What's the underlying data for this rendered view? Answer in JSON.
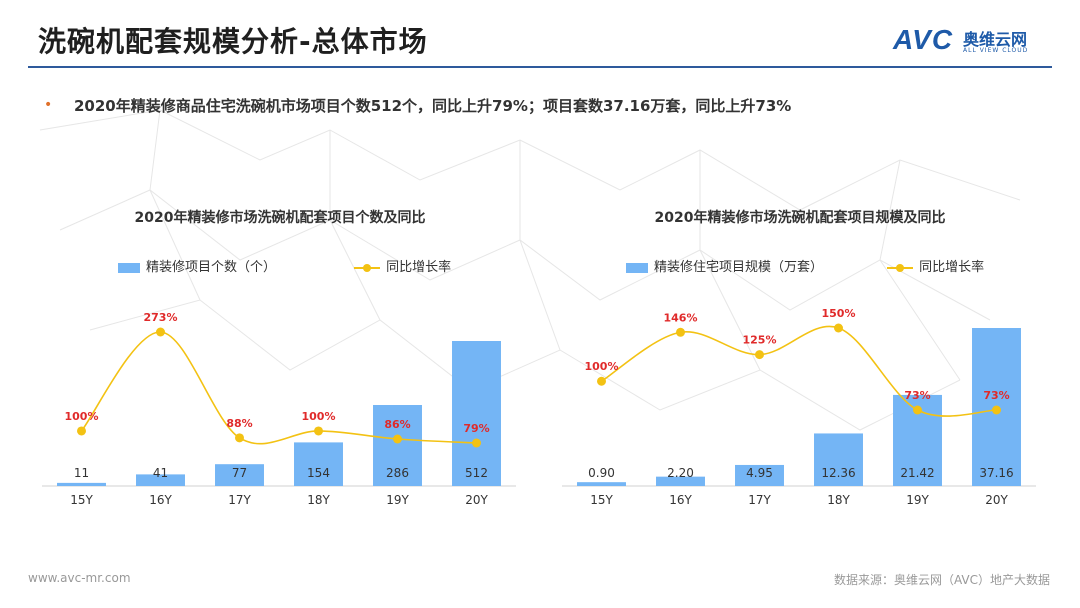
{
  "page": {
    "title": "洗碗机配套规模分析-总体市场",
    "bullet": "2020年精装修商品住宅洗碗机市场项目个数512个，同比上升79%；项目套数37.16万套，同比上升73%",
    "logo": {
      "mark": "AVC",
      "name_cn": "奥维云网",
      "name_en": "ALL VIEW CLOUD"
    },
    "footer_left": "www.avc-mr.com",
    "footer_right": "数据来源：奥维云网（AVC）地产大数据"
  },
  "colors": {
    "bar": "#74b5f5",
    "line": "#f3c213",
    "rate_label": "#e02a2a",
    "title_rule": "#2e5a9c"
  },
  "chart_data": [
    {
      "type": "bar",
      "title": "2020年精装修市场洗碗机配套项目个数及同比",
      "categories": [
        "15Y",
        "16Y",
        "17Y",
        "18Y",
        "19Y",
        "20Y"
      ],
      "series": [
        {
          "name": "精装修项目个数（个）",
          "type": "bar",
          "values": [
            11,
            41,
            77,
            154,
            286,
            512
          ],
          "labels": [
            "11",
            "41",
            "77",
            "154",
            "286",
            "512"
          ]
        },
        {
          "name": "同比增长率",
          "type": "line",
          "values": [
            100,
            273,
            88,
            100,
            86,
            79
          ],
          "labels": [
            "100%",
            "273%",
            "88%",
            "100%",
            "86%",
            "79%"
          ]
        }
      ],
      "legend_position": "top",
      "grid": false
    },
    {
      "type": "bar",
      "title": "2020年精装修市场洗碗机配套项目规模及同比",
      "categories": [
        "15Y",
        "16Y",
        "17Y",
        "18Y",
        "19Y",
        "20Y"
      ],
      "series": [
        {
          "name": "精装修住宅项目规模（万套）",
          "type": "bar",
          "values": [
            0.9,
            2.2,
            4.95,
            12.36,
            21.42,
            37.16
          ],
          "labels": [
            "0.90",
            "2.20",
            "4.95",
            "12.36",
            "21.42",
            "37.16"
          ]
        },
        {
          "name": "同比增长率",
          "type": "line",
          "values": [
            100,
            146,
            125,
            150,
            73,
            73
          ],
          "labels": [
            "100%",
            "146%",
            "125%",
            "150%",
            "73%",
            "73%"
          ]
        }
      ],
      "legend_position": "top",
      "grid": false
    }
  ]
}
